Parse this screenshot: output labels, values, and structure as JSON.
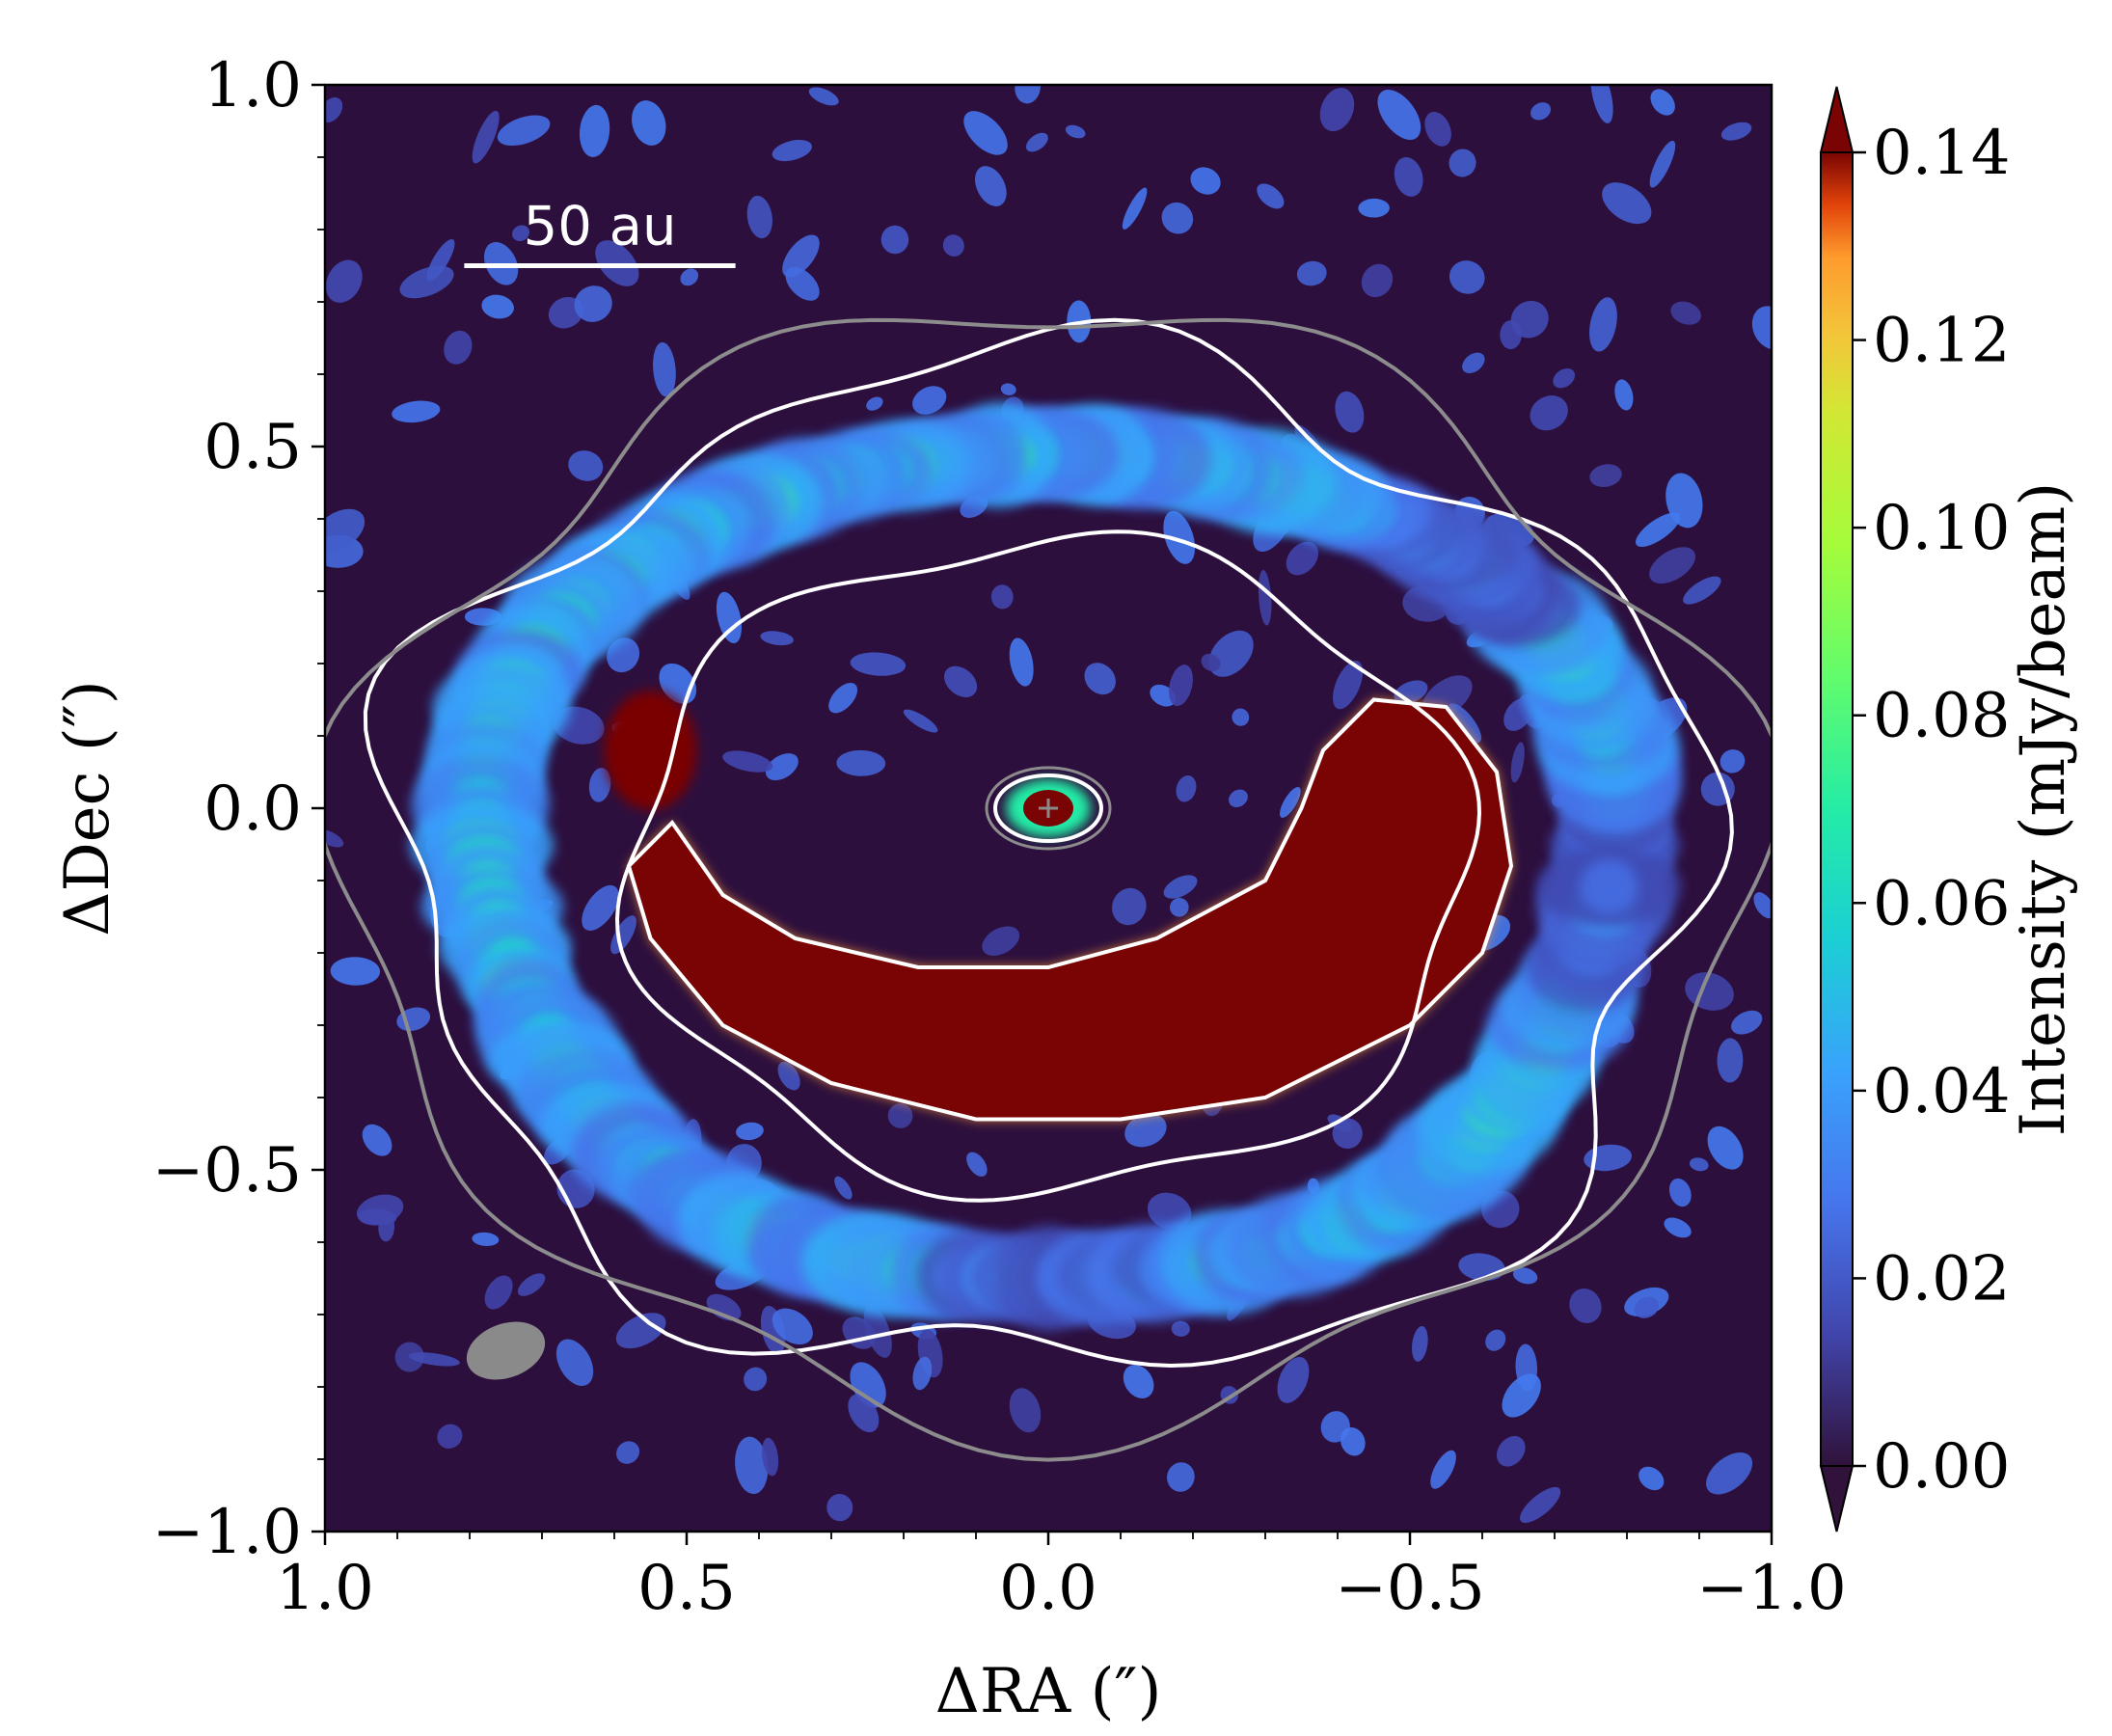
{
  "chart_data": {
    "type": "heatmap",
    "xlabel": "ΔRA (″)",
    "ylabel": "ΔDec (″)",
    "xlim": [
      1.0,
      -1.0
    ],
    "ylim": [
      -1.0,
      1.0
    ],
    "x_ticks": [
      1.0,
      0.5,
      0.0,
      -0.5,
      -1.0
    ],
    "x_tick_labels": [
      "1.0",
      "0.5",
      "0.0",
      "−0.5",
      "−1.0"
    ],
    "y_ticks": [
      1.0,
      0.5,
      0.0,
      -0.5,
      -1.0
    ],
    "y_tick_labels": [
      "1.0",
      "0.5",
      "0.0",
      "−0.5",
      "−1.0"
    ],
    "colorbar": {
      "label": "Intensity (mJy/beam)",
      "min": 0.0,
      "max": 0.14,
      "ticks": [
        0.0,
        0.02,
        0.04,
        0.06,
        0.08,
        0.1,
        0.12,
        0.14
      ],
      "tick_labels": [
        "0.00",
        "0.02",
        "0.04",
        "0.06",
        "0.08",
        "0.10",
        "0.12",
        "0.14"
      ],
      "colormap": "turbo",
      "extend": "both"
    },
    "scale_bar": {
      "label": "50 au",
      "length_arcsec": 0.375,
      "center": [
        0.62,
        0.75
      ]
    },
    "beam": {
      "x": 0.75,
      "y": -0.75,
      "color": "#8a8a8a"
    },
    "star_marker": {
      "x": 0.0,
      "y": 0.0,
      "color": "#8a8a8a"
    },
    "structures": {
      "background": 0.0,
      "ring": {
        "radius_x": 0.78,
        "radius_y": 0.6,
        "center": [
          0.0,
          -0.08
        ],
        "peak_intensity": 0.06
      },
      "crescent": {
        "center": [
          -0.1,
          -0.18
        ],
        "peak_intensity": 0.16
      },
      "central_source": {
        "x": 0.0,
        "y": 0.0,
        "peak_intensity": 0.16
      }
    },
    "contour_colors": {
      "low": "#8c8c8c",
      "high": "#ffffff"
    }
  },
  "colors": {
    "background_map": "#2d0f3e",
    "crescent": "#7a0403",
    "axes": "#000000"
  }
}
